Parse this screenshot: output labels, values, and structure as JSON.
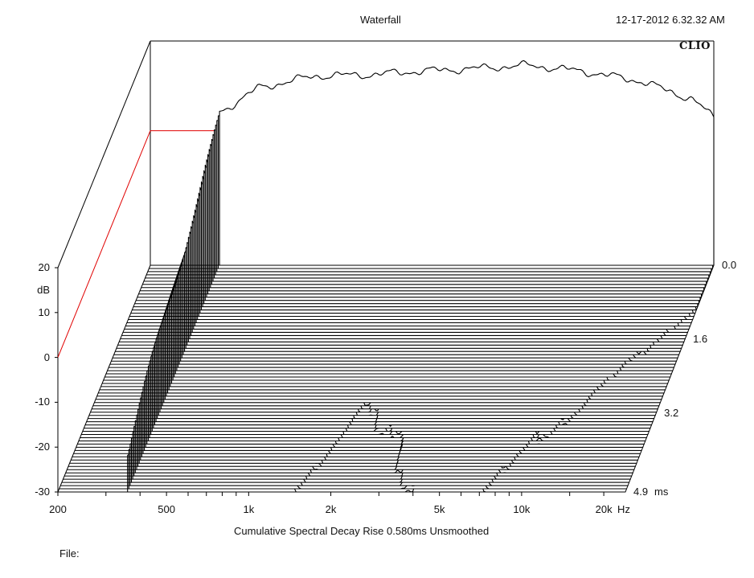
{
  "header": {
    "title": "Waterfall",
    "timestamp": "12-17-2012 6.32.32 AM",
    "brand": "CLIO"
  },
  "footer": {
    "caption": "Cumulative Spectral Decay   Rise 0.580ms   Unsmoothed",
    "file_label": "File:"
  },
  "colors": {
    "ink": "#000000",
    "reference_line": "#e00000",
    "background": "#ffffff"
  },
  "chart_data": {
    "type": "waterfall",
    "title": "Waterfall",
    "subtitle": "Cumulative Spectral Decay   Rise 0.580ms   Unsmoothed",
    "ylabel": "dB",
    "xunit": "Hz",
    "zunit": "ms",
    "x_scale": "log",
    "xlim": [
      200,
      24000
    ],
    "ylim": [
      -30,
      20
    ],
    "zlim": [
      0,
      4.9
    ],
    "x_ticks": [
      {
        "value": 200,
        "label": "200"
      },
      {
        "value": 500,
        "label": "500"
      },
      {
        "value": 1000,
        "label": "1k"
      },
      {
        "value": 2000,
        "label": "2k"
      },
      {
        "value": 5000,
        "label": "5k"
      },
      {
        "value": 10000,
        "label": "10k"
      },
      {
        "value": 20000,
        "label": "20k"
      }
    ],
    "y_ticks": [
      {
        "value": 20,
        "label": "20"
      },
      {
        "value": 10,
        "label": "10"
      },
      {
        "value": 0,
        "label": "0"
      },
      {
        "value": -10,
        "label": "-10"
      },
      {
        "value": -20,
        "label": "-20"
      },
      {
        "value": -30,
        "label": "-30"
      }
    ],
    "z_ticks": [
      {
        "value": 0.0,
        "label": "0.0"
      },
      {
        "value": 1.6,
        "label": "1.6"
      },
      {
        "value": 3.2,
        "label": "3.2"
      },
      {
        "value": 4.9,
        "label": "4.9"
      }
    ],
    "reference_level_db": 0,
    "slices": 72,
    "frequency_start_hz": 360,
    "decay_envelope": {
      "freq_hz": [
        360,
        500,
        800,
        1300,
        2000,
        3000,
        5000,
        8000,
        13000,
        20000,
        24000
      ],
      "level_db": [
        4.0,
        9.5,
        12.2,
        12.5,
        13.3,
        13.8,
        14.6,
        13.2,
        11.0,
        7.0,
        3.0
      ],
      "decay_ms": [
        4.9,
        4.6,
        4.0,
        3.3,
        1.8,
        2.2,
        3.6,
        2.6,
        1.8,
        1.0,
        0.8
      ]
    }
  }
}
